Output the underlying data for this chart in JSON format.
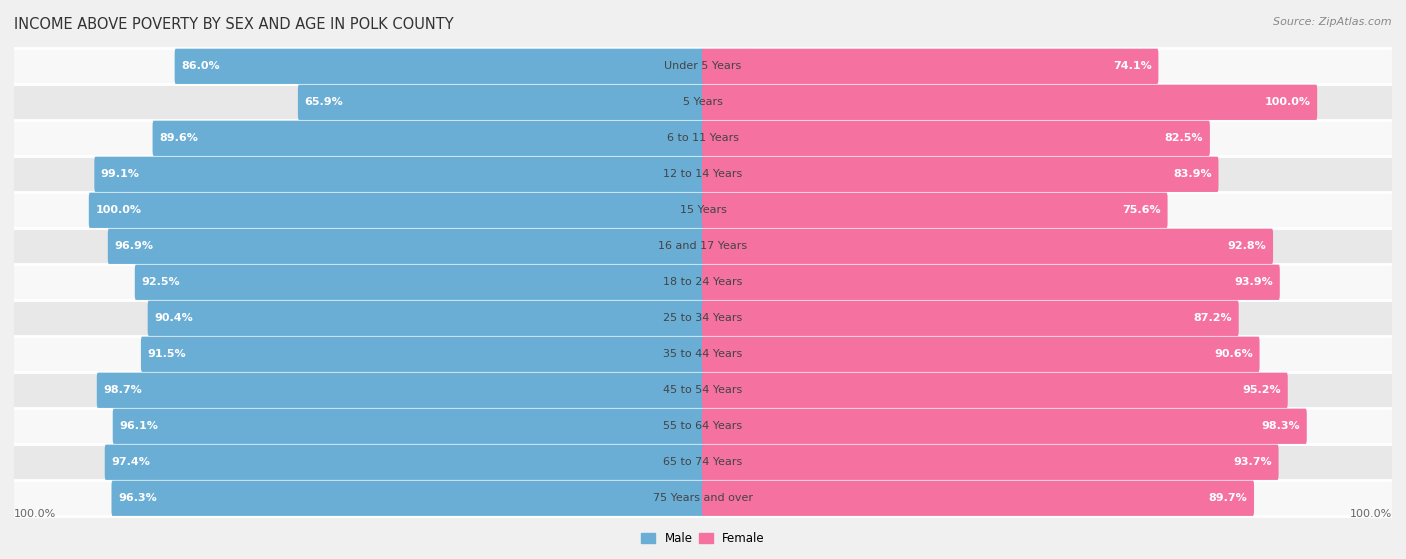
{
  "title": "INCOME ABOVE POVERTY BY SEX AND AGE IN POLK COUNTY",
  "source": "Source: ZipAtlas.com",
  "categories": [
    "Under 5 Years",
    "5 Years",
    "6 to 11 Years",
    "12 to 14 Years",
    "15 Years",
    "16 and 17 Years",
    "18 to 24 Years",
    "25 to 34 Years",
    "35 to 44 Years",
    "45 to 54 Years",
    "55 to 64 Years",
    "65 to 74 Years",
    "75 Years and over"
  ],
  "male_values": [
    86.0,
    65.9,
    89.6,
    99.1,
    100.0,
    96.9,
    92.5,
    90.4,
    91.5,
    98.7,
    96.1,
    97.4,
    96.3
  ],
  "female_values": [
    74.1,
    100.0,
    82.5,
    83.9,
    75.6,
    92.8,
    93.9,
    87.2,
    90.6,
    95.2,
    98.3,
    93.7,
    89.7
  ],
  "male_color": "#6aaed6",
  "female_color": "#f471a0",
  "male_label": "Male",
  "female_label": "Female",
  "background_color": "#f0f0f0",
  "row_color_odd": "#e8e8e8",
  "row_color_even": "#f8f8f8",
  "title_fontsize": 10.5,
  "label_fontsize": 8.5,
  "value_fontsize": 8,
  "source_fontsize": 8,
  "max_value": 100.0,
  "legend_male_color": "#6aaed6",
  "legend_female_color": "#f471a0"
}
